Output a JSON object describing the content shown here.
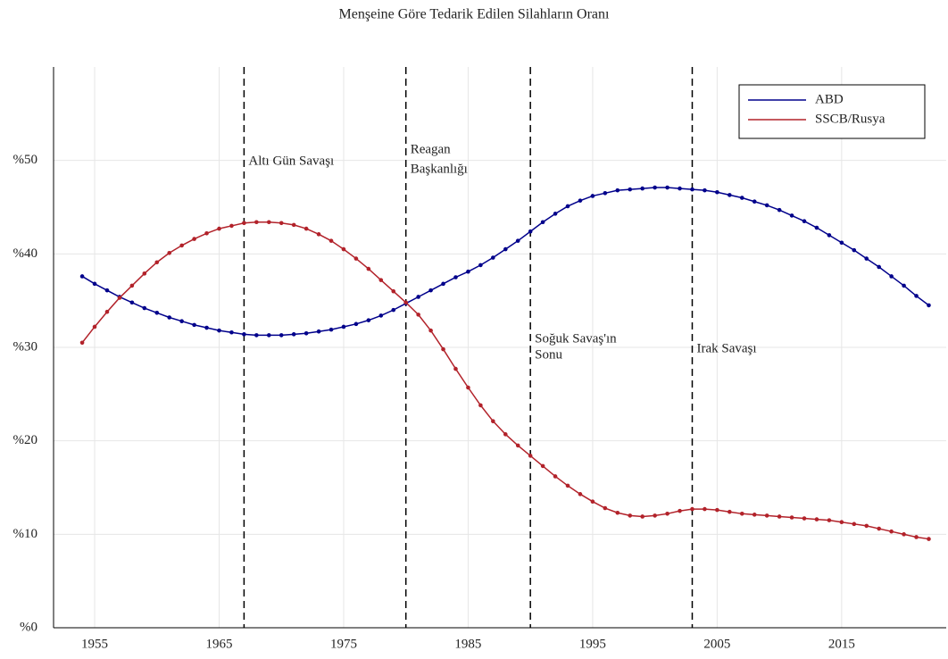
{
  "chart_data": {
    "type": "line",
    "title": "Menşeine Göre Tedarik Edilen Silahların Oranı",
    "x": [
      1954,
      1955,
      1956,
      1957,
      1958,
      1959,
      1960,
      1961,
      1962,
      1963,
      1964,
      1965,
      1966,
      1967,
      1968,
      1969,
      1970,
      1971,
      1972,
      1973,
      1974,
      1975,
      1976,
      1977,
      1978,
      1979,
      1980,
      1981,
      1982,
      1983,
      1984,
      1985,
      1986,
      1987,
      1988,
      1989,
      1990,
      1991,
      1992,
      1993,
      1994,
      1995,
      1996,
      1997,
      1998,
      1999,
      2000,
      2001,
      2002,
      2003,
      2004,
      2005,
      2006,
      2007,
      2008,
      2009,
      2010,
      2011,
      2012,
      2013,
      2014,
      2015,
      2016,
      2017,
      2018,
      2019,
      2020,
      2021,
      2022
    ],
    "series": [
      {
        "name": "ABD",
        "color": "#00008b",
        "values": [
          37.6,
          36.8,
          36.1,
          35.4,
          34.8,
          34.2,
          33.7,
          33.2,
          32.8,
          32.4,
          32.1,
          31.8,
          31.6,
          31.4,
          31.3,
          31.3,
          31.3,
          31.4,
          31.5,
          31.7,
          31.9,
          32.2,
          32.5,
          32.9,
          33.4,
          34.0,
          34.7,
          35.4,
          36.1,
          36.8,
          37.5,
          38.1,
          38.8,
          39.6,
          40.5,
          41.4,
          42.4,
          43.4,
          44.3,
          45.1,
          45.7,
          46.2,
          46.5,
          46.8,
          46.9,
          47.0,
          47.1,
          47.1,
          47.0,
          46.9,
          46.8,
          46.6,
          46.3,
          46.0,
          45.6,
          45.2,
          44.7,
          44.1,
          43.5,
          42.8,
          42.0,
          41.2,
          40.4,
          39.5,
          38.6,
          37.6,
          36.6,
          35.5,
          34.5
        ]
      },
      {
        "name": "SSCB/Rusya",
        "color": "#b2222a",
        "values": [
          30.5,
          32.2,
          33.8,
          35.3,
          36.6,
          37.9,
          39.1,
          40.1,
          40.9,
          41.6,
          42.2,
          42.7,
          43.0,
          43.3,
          43.4,
          43.4,
          43.3,
          43.1,
          42.7,
          42.1,
          41.4,
          40.5,
          39.5,
          38.4,
          37.2,
          36.0,
          34.8,
          33.5,
          31.8,
          29.8,
          27.7,
          25.7,
          23.8,
          22.1,
          20.7,
          19.5,
          18.4,
          17.3,
          16.2,
          15.2,
          14.3,
          13.5,
          12.8,
          12.3,
          12.0,
          11.9,
          12.0,
          12.2,
          12.5,
          12.7,
          12.7,
          12.6,
          12.4,
          12.2,
          12.1,
          12.0,
          11.9,
          11.8,
          11.7,
          11.6,
          11.5,
          11.3,
          11.1,
          10.9,
          10.6,
          10.3,
          10.0,
          9.7,
          9.5
        ]
      }
    ],
    "annotations": [
      {
        "x": 1967,
        "lines": [
          "Altı Gün Savaşı"
        ]
      },
      {
        "x": 1980,
        "lines": [
          "Reagan",
          "Başkanlığı"
        ]
      },
      {
        "x": 1990,
        "lines": [
          "Soğuk Savaş'ın",
          "Sonu"
        ]
      },
      {
        "x": 2003,
        "lines": [
          "Irak Savaşı"
        ]
      }
    ],
    "xlim": [
      1951.7,
      2023.4
    ],
    "xticks": [
      1955,
      1965,
      1975,
      1985,
      1995,
      2005,
      2015
    ],
    "ylim": [
      0,
      60
    ],
    "yticks": [
      {
        "value": 0,
        "label": "%0"
      },
      {
        "value": 10,
        "label": "%10"
      },
      {
        "value": 20,
        "label": "%20"
      },
      {
        "value": 30,
        "label": "%30"
      },
      {
        "value": 40,
        "label": "%40"
      },
      {
        "value": 50,
        "label": "%50"
      }
    ],
    "grid": true,
    "legend": "upper right"
  }
}
